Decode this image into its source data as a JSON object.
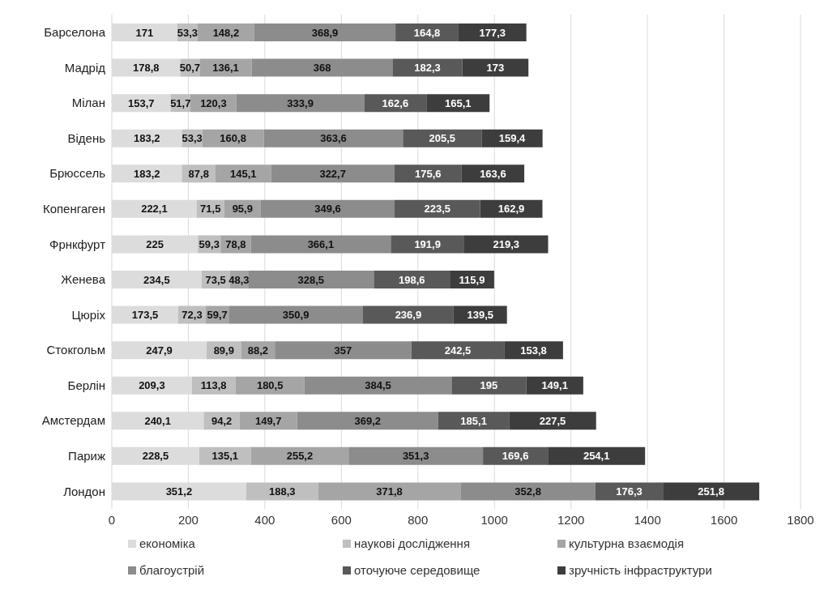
{
  "chart_data": {
    "type": "bar",
    "orientation": "horizontal",
    "stacked": true,
    "categories": [
      "Барселона",
      "Мадрід",
      "Мілан",
      "Відень",
      "Брюссель",
      "Копенгаген",
      "Фрнкфурт",
      "Женева",
      "Цюріх",
      "Стокгольм",
      "Берлін",
      "Амстердам",
      "Париж",
      "Лондон"
    ],
    "xlim": [
      0,
      1800
    ],
    "xticks": [
      0,
      200,
      400,
      600,
      800,
      1000,
      1200,
      1400,
      1600,
      1800
    ],
    "grid": "x",
    "legend": "bottom",
    "series": [
      {
        "name": "економіка",
        "color": "#dcdcdc",
        "values": [
          171,
          178.8,
          153.7,
          183.2,
          183.2,
          222.1,
          225,
          234.5,
          173.5,
          247.9,
          209.3,
          240.1,
          228.5,
          351.2
        ],
        "value_labels": [
          "171",
          "178,8",
          "153,7",
          "183,2",
          "183,2",
          "222,1",
          "225",
          "234,5",
          "173,5",
          "247,9",
          "209,3",
          "240,1",
          "228,5",
          "351,2"
        ]
      },
      {
        "name": "наукові дослідження",
        "color": "#bfbfbf",
        "values": [
          53.3,
          50.7,
          51.7,
          53.3,
          87.8,
          71.5,
          59.3,
          73.5,
          72.3,
          89.9,
          113.8,
          94.2,
          135.1,
          188.3
        ],
        "value_labels": [
          "53,3",
          "50,7",
          "51,7",
          "53,3",
          "87,8",
          "71,5",
          "59,3",
          "73,5",
          "72,3",
          "89,9",
          "113,8",
          "94,2",
          "135,1",
          "188,3"
        ]
      },
      {
        "name": "культурна взаємодія",
        "color": "#a5a5a5",
        "values": [
          148.2,
          136.1,
          120.3,
          160.8,
          145.1,
          95.9,
          78.8,
          48.3,
          59.7,
          88.2,
          180.5,
          149.7,
          255.2,
          371.8
        ],
        "value_labels": [
          "148,2",
          "136,1",
          "120,3",
          "160,8",
          "145,1",
          "95,9",
          "78,8",
          "48,3",
          "59,7",
          "88,2",
          "180,5",
          "149,7",
          "255,2",
          "371,8"
        ]
      },
      {
        "name": "благоустрій",
        "color": "#8c8c8c",
        "values": [
          368.9,
          368,
          333.9,
          363.6,
          322.7,
          349.6,
          366.1,
          328.5,
          350.9,
          357,
          384.5,
          369.2,
          351.3,
          352.8
        ],
        "value_labels": [
          "368,9",
          "368",
          "333,9",
          "363,6",
          "322,7",
          "349,6",
          "366,1",
          "328,5",
          "350,9",
          "357",
          "384,5",
          "369,2",
          "351,3",
          "352,8"
        ]
      },
      {
        "name": "оточуюче середовище",
        "color": "#595959",
        "values": [
          164.8,
          182.3,
          162.6,
          205.5,
          175.6,
          223.5,
          191.9,
          198.6,
          236.9,
          242.5,
          195,
          185.1,
          169.6,
          176.3
        ],
        "value_labels": [
          "164,8",
          "182,3",
          "162,6",
          "205,5",
          "175,6",
          "223,5",
          "191,9",
          "198,6",
          "236,9",
          "242,5",
          "195",
          "185,1",
          "169,6",
          "176,3"
        ]
      },
      {
        "name": "зручність інфраструктури",
        "color": "#3d3d3d",
        "values": [
          177.3,
          173,
          165.1,
          159.4,
          163.6,
          162.9,
          219.3,
          115.9,
          139.5,
          153.8,
          149.1,
          227.5,
          254.1,
          251.8
        ],
        "value_labels": [
          "177,3",
          "173",
          "165,1",
          "159,4",
          "163,6",
          "162,9",
          "219,3",
          "115,9",
          "139,5",
          "153,8",
          "149,1",
          "227,5",
          "254,1",
          "251,8"
        ]
      }
    ]
  }
}
